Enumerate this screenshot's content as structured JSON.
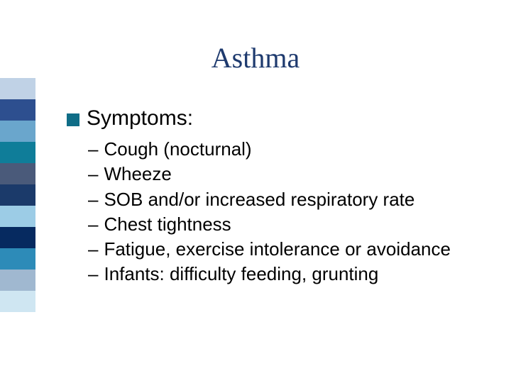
{
  "title": {
    "text": "Asthma",
    "color": "#1e3a6e",
    "fontsize": 40
  },
  "sidebar": {
    "colors": [
      "#c0d2e6",
      "#2d4f8f",
      "#6aa6cc",
      "#0f7d99",
      "#4a5a7a",
      "#1b3a6a",
      "#9ccce6",
      "#062a60",
      "#2d8bb8",
      "#a0b8d0",
      "#cfe6f2"
    ],
    "block_height": 30
  },
  "heading": {
    "bullet_color": "#0f6d87",
    "bullet_size": 18,
    "text": "Symptoms:",
    "fontsize": 30,
    "color": "#000000"
  },
  "items": {
    "dash": "–",
    "fontsize": 26,
    "color": "#000000",
    "line_height": 1.28,
    "list": [
      "Cough (nocturnal)",
      "Wheeze",
      "SOB and/or increased respiratory rate",
      "Chest tightness",
      "Fatigue, exercise intolerance or avoidance",
      "Infants: difficulty feeding, grunting"
    ]
  }
}
